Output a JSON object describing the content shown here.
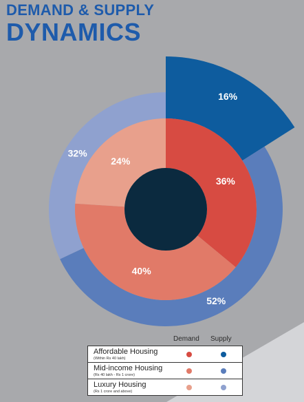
{
  "title": {
    "line1": "DEMAND & SUPPLY",
    "line2": "DYNAMICS"
  },
  "legend": {
    "demand_header": "Demand",
    "supply_header": "Supply",
    "rows": [
      {
        "name": "Affordable Housing",
        "sub": "(Within Rs 40 lakh)",
        "demand_color": "#d74b42",
        "supply_color": "#0e5c9e"
      },
      {
        "name": "Mid-income Housing",
        "sub": "(Rs 40 lakh - Rs 1 crore)",
        "demand_color": "#e17a68",
        "supply_color": "#5a7dbb"
      },
      {
        "name": "Luxury Housing",
        "sub": "(Rs 1 crore and above)",
        "demand_color": "#e8a08c",
        "supply_color": "#8fa1cf"
      }
    ]
  },
  "chart_data": {
    "type": "pie",
    "rings": [
      {
        "name": "Demand",
        "slices": [
          {
            "category": "Affordable Housing",
            "value": 36,
            "label": "36%",
            "color": "#d74b42"
          },
          {
            "category": "Mid-income Housing",
            "value": 40,
            "label": "40%",
            "color": "#e17a68"
          },
          {
            "category": "Luxury Housing",
            "value": 24,
            "label": "24%",
            "color": "#e8a08c"
          }
        ]
      },
      {
        "name": "Supply",
        "slices": [
          {
            "category": "Affordable Housing",
            "value": 16,
            "label": "16%",
            "color": "#0e5c9e"
          },
          {
            "category": "Mid-income Housing",
            "value": 52,
            "label": "52%",
            "color": "#5a7dbb"
          },
          {
            "category": "Luxury Housing",
            "value": 32,
            "label": "32%",
            "color": "#8fa1cf"
          }
        ]
      }
    ],
    "center_color": "#0b2a3f",
    "legend_position": "bottom-right"
  }
}
